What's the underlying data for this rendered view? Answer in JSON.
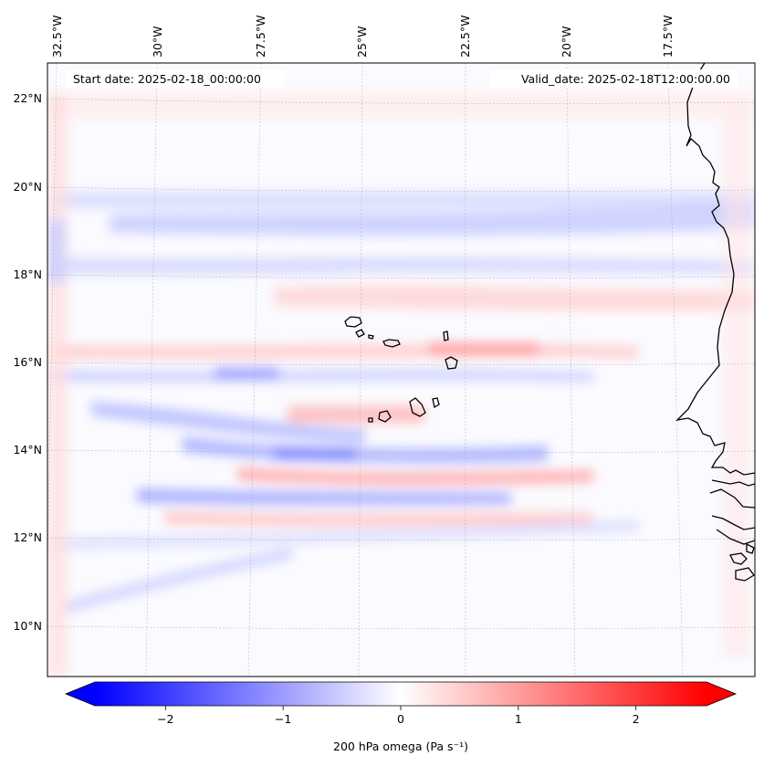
{
  "map": {
    "start_date": "Start date: 2025-02-18_00:00:00",
    "valid_date": "Valid_date: 2025-02-18T12:00:00.00",
    "lon_labels": [
      "32.5°W",
      "30°W",
      "27.5°W",
      "25°W",
      "22.5°W",
      "20°W",
      "17.5°W"
    ],
    "lat_labels": [
      "22°N",
      "20°N",
      "18°N",
      "16°N",
      "14°N",
      "12°N",
      "10°N"
    ],
    "variable": "200 hPa omega",
    "units": "Pa s⁻¹"
  },
  "colorbar": {
    "ticks": [
      "−2",
      "−1",
      "0",
      "1",
      "2"
    ],
    "tick_values": [
      -2,
      -1,
      0,
      1,
      2
    ],
    "range": [
      -2.6,
      2.6
    ],
    "label": "200 hPa omega (Pa s⁻¹)",
    "colors": {
      "negative": "#0000ff",
      "zero": "#ffffff",
      "positive": "#ff0000"
    }
  }
}
